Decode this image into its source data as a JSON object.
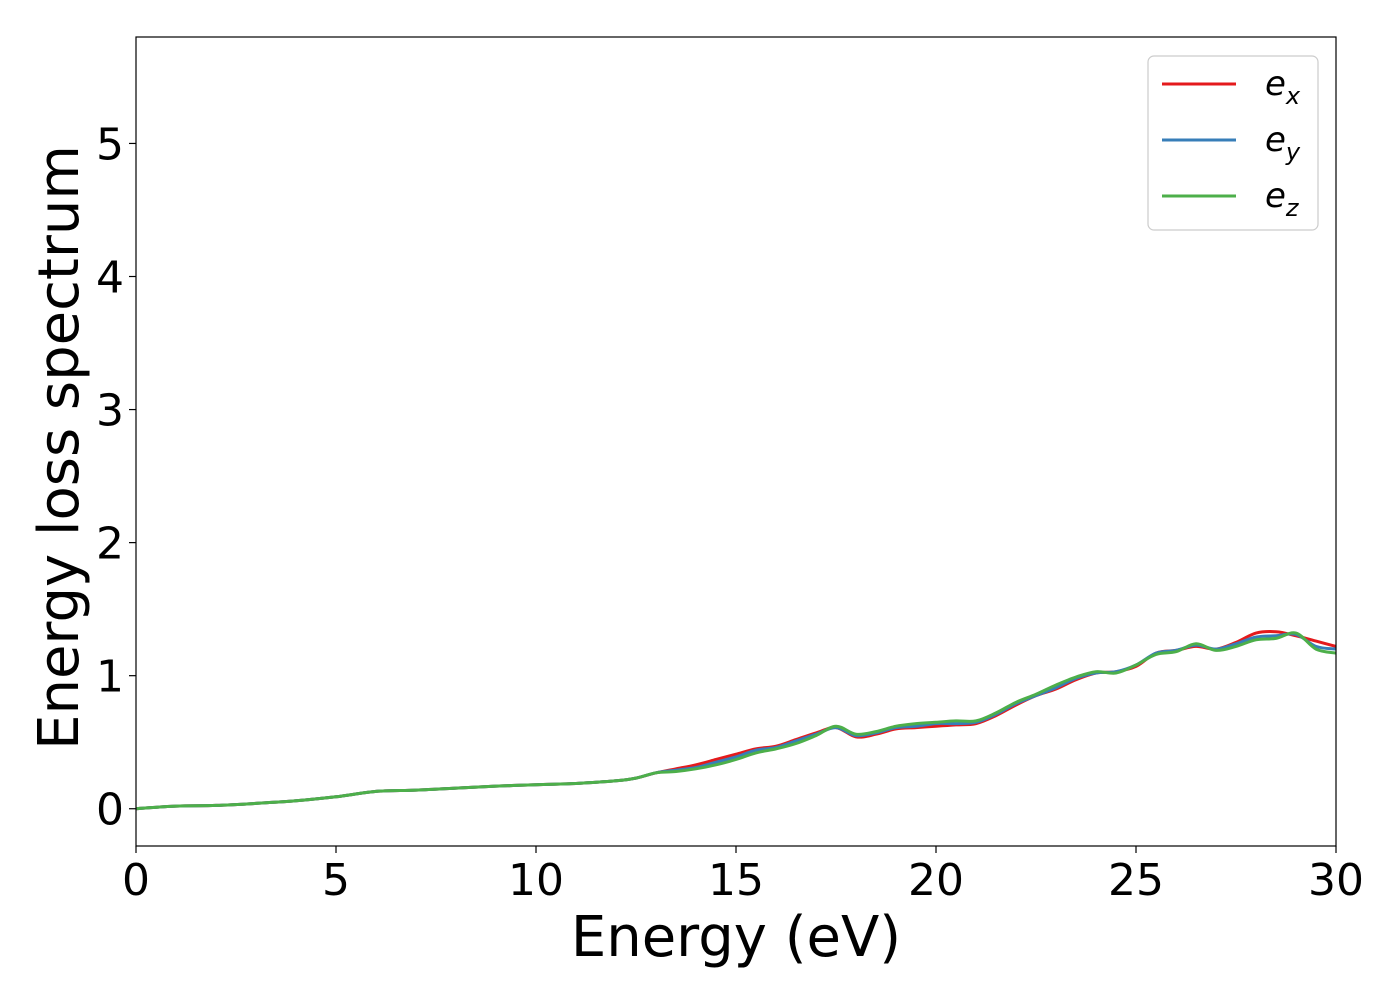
{
  "chart_data": {
    "type": "line",
    "xlabel": "Energy (eV)",
    "ylabel": "Energy loss spectrum",
    "xlim": [
      0,
      30
    ],
    "ylim": [
      -0.28,
      5.8
    ],
    "xticks": [
      "0",
      "5",
      "10",
      "15",
      "20",
      "25",
      "30"
    ],
    "yticks": [
      "0",
      "1",
      "2",
      "3",
      "4",
      "5"
    ],
    "grid": false,
    "legend_position": "top-right",
    "x": [
      0,
      1,
      2,
      3,
      4,
      5,
      6,
      7,
      8,
      9,
      10,
      11,
      12,
      12.5,
      13,
      13.5,
      14,
      14.5,
      15,
      15.5,
      16,
      16.5,
      17,
      17.5,
      18,
      18.5,
      19,
      19.5,
      20,
      20.5,
      21,
      21.5,
      22,
      22.5,
      23,
      23.5,
      24,
      24.5,
      25,
      25.5,
      26,
      26.5,
      27,
      27.5,
      28,
      28.5,
      29,
      29.5,
      30
    ],
    "series": [
      {
        "name": "e",
        "sub": "x",
        "color": "#e41a1c",
        "values": [
          0.0,
          0.02,
          0.025,
          0.04,
          0.06,
          0.09,
          0.13,
          0.14,
          0.155,
          0.17,
          0.18,
          0.19,
          0.21,
          0.23,
          0.27,
          0.3,
          0.33,
          0.37,
          0.41,
          0.45,
          0.47,
          0.52,
          0.57,
          0.61,
          0.54,
          0.56,
          0.6,
          0.61,
          0.62,
          0.63,
          0.64,
          0.7,
          0.78,
          0.85,
          0.9,
          0.97,
          1.02,
          1.03,
          1.07,
          1.17,
          1.19,
          1.22,
          1.2,
          1.25,
          1.32,
          1.33,
          1.3,
          1.26,
          1.22
        ]
      },
      {
        "name": "e",
        "sub": "y",
        "color": "#377eb8",
        "values": [
          0.0,
          0.02,
          0.025,
          0.04,
          0.06,
          0.09,
          0.13,
          0.14,
          0.155,
          0.17,
          0.18,
          0.19,
          0.21,
          0.23,
          0.27,
          0.29,
          0.31,
          0.35,
          0.39,
          0.44,
          0.46,
          0.51,
          0.56,
          0.61,
          0.55,
          0.57,
          0.61,
          0.62,
          0.64,
          0.64,
          0.65,
          0.71,
          0.79,
          0.85,
          0.91,
          0.98,
          1.02,
          1.03,
          1.08,
          1.17,
          1.19,
          1.23,
          1.2,
          1.24,
          1.29,
          1.3,
          1.31,
          1.22,
          1.2
        ]
      },
      {
        "name": "e",
        "sub": "z",
        "color": "#4daf4a",
        "values": [
          0.0,
          0.02,
          0.025,
          0.04,
          0.06,
          0.09,
          0.13,
          0.14,
          0.155,
          0.17,
          0.18,
          0.19,
          0.21,
          0.23,
          0.27,
          0.28,
          0.3,
          0.33,
          0.37,
          0.42,
          0.45,
          0.49,
          0.55,
          0.62,
          0.56,
          0.58,
          0.62,
          0.64,
          0.65,
          0.66,
          0.66,
          0.72,
          0.8,
          0.86,
          0.93,
          0.99,
          1.03,
          1.02,
          1.08,
          1.16,
          1.18,
          1.24,
          1.19,
          1.22,
          1.27,
          1.28,
          1.32,
          1.2,
          1.17
        ]
      }
    ]
  }
}
